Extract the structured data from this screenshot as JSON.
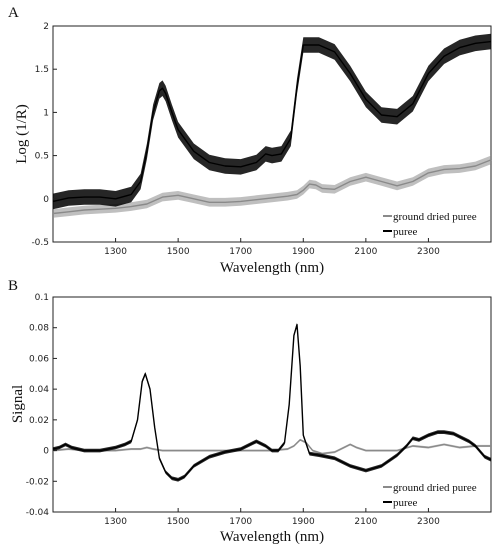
{
  "chart_data": [
    {
      "type": "line",
      "panel_label": "A",
      "xlabel": "Wavelength (nm)",
      "ylabel": "Log (1/R)",
      "xlim": [
        1100,
        2500
      ],
      "ylim": [
        -0.5,
        2
      ],
      "xticks": [
        1300,
        1500,
        1700,
        1900,
        2100,
        2300
      ],
      "yticks": [
        -0.5,
        0,
        0.5,
        1,
        1.5,
        2
      ],
      "ytick_labels": [
        "-0.5",
        "0",
        "0.5",
        "1",
        "1.5",
        "2"
      ],
      "legend_position": "bottom-right",
      "grid": false,
      "series": [
        {
          "name": "ground dried puree",
          "color": "#8a8a8a",
          "band_halfwidth": 0.05,
          "x": [
            1100,
            1150,
            1200,
            1250,
            1300,
            1350,
            1400,
            1450,
            1500,
            1550,
            1600,
            1650,
            1700,
            1750,
            1800,
            1850,
            1880,
            1900,
            1920,
            1940,
            1960,
            2000,
            2050,
            2100,
            2150,
            2200,
            2250,
            2300,
            2350,
            2400,
            2450,
            2500
          ],
          "values": [
            -0.17,
            -0.15,
            -0.13,
            -0.12,
            -0.11,
            -0.09,
            -0.06,
            0.02,
            0.04,
            0.0,
            -0.04,
            -0.04,
            -0.03,
            -0.01,
            0.01,
            0.03,
            0.05,
            0.1,
            0.17,
            0.16,
            0.12,
            0.11,
            0.2,
            0.25,
            0.2,
            0.15,
            0.2,
            0.3,
            0.34,
            0.35,
            0.38,
            0.45
          ]
        },
        {
          "name": "puree",
          "color": "#000000",
          "band_halfwidth": 0.09,
          "x": [
            1100,
            1150,
            1200,
            1250,
            1300,
            1350,
            1380,
            1400,
            1420,
            1440,
            1450,
            1460,
            1480,
            1500,
            1550,
            1600,
            1650,
            1700,
            1750,
            1780,
            1800,
            1830,
            1860,
            1880,
            1900,
            1950,
            2000,
            2050,
            2100,
            2150,
            2200,
            2250,
            2300,
            2350,
            2400,
            2450,
            2500
          ],
          "values": [
            -0.03,
            0.01,
            0.02,
            0.02,
            0.0,
            0.05,
            0.2,
            0.55,
            1.0,
            1.25,
            1.28,
            1.22,
            1.0,
            0.8,
            0.55,
            0.42,
            0.38,
            0.37,
            0.42,
            0.52,
            0.5,
            0.52,
            0.7,
            1.3,
            1.78,
            1.78,
            1.7,
            1.45,
            1.15,
            0.97,
            0.95,
            1.1,
            1.45,
            1.65,
            1.75,
            1.8,
            1.82
          ]
        }
      ]
    },
    {
      "type": "line",
      "panel_label": "B",
      "xlabel": "Wavelength (nm)",
      "ylabel": "Signal",
      "xlim": [
        1100,
        2500
      ],
      "ylim": [
        -0.04,
        0.1
      ],
      "xticks": [
        1300,
        1500,
        1700,
        1900,
        2100,
        2300
      ],
      "yticks": [
        -0.04,
        -0.02,
        0,
        0.02,
        0.04,
        0.06,
        0.08,
        0.1
      ],
      "ytick_labels": [
        "-0.04",
        "-0.02",
        "0",
        "0.02",
        "0.04",
        "0.06",
        "0.08",
        "0.1"
      ],
      "legend_position": "bottom-right",
      "grid": false,
      "series": [
        {
          "name": "ground dried puree",
          "color": "#8a8a8a",
          "band_halfwidth": 0.0007,
          "x": [
            1100,
            1150,
            1200,
            1300,
            1350,
            1380,
            1400,
            1420,
            1450,
            1480,
            1500,
            1600,
            1700,
            1750,
            1800,
            1850,
            1870,
            1890,
            1910,
            1930,
            1960,
            2000,
            2030,
            2050,
            2070,
            2100,
            2150,
            2200,
            2250,
            2300,
            2350,
            2400,
            2450,
            2500
          ],
          "values": [
            0.0,
            0.001,
            0.0,
            0.0,
            0.001,
            0.001,
            0.002,
            0.001,
            0.0,
            0.0,
            0.0,
            0.0,
            0.0,
            0.0,
            0.0,
            0.001,
            0.003,
            0.007,
            0.005,
            0.0,
            -0.002,
            -0.001,
            0.002,
            0.004,
            0.002,
            0.0,
            0.0,
            0.0,
            0.003,
            0.002,
            0.004,
            0.002,
            0.003,
            0.003
          ]
        },
        {
          "name": "puree",
          "color": "#000000",
          "band_halfwidth": 0.0012,
          "x": [
            1100,
            1120,
            1140,
            1160,
            1200,
            1250,
            1300,
            1330,
            1350,
            1370,
            1385,
            1395,
            1410,
            1425,
            1440,
            1460,
            1480,
            1500,
            1520,
            1550,
            1600,
            1650,
            1700,
            1750,
            1780,
            1800,
            1820,
            1840,
            1855,
            1870,
            1880,
            1890,
            1900,
            1920,
            1950,
            2000,
            2050,
            2100,
            2150,
            2200,
            2230,
            2250,
            2270,
            2300,
            2330,
            2350,
            2380,
            2400,
            2430,
            2450,
            2480,
            2500
          ],
          "values": [
            0.001,
            0.002,
            0.004,
            0.002,
            0.0,
            0.0,
            0.002,
            0.004,
            0.006,
            0.02,
            0.045,
            0.05,
            0.04,
            0.015,
            -0.005,
            -0.014,
            -0.018,
            -0.019,
            -0.017,
            -0.01,
            -0.004,
            -0.001,
            0.001,
            0.006,
            0.003,
            0.0,
            0.0,
            0.005,
            0.03,
            0.075,
            0.082,
            0.055,
            0.01,
            -0.002,
            -0.003,
            -0.005,
            -0.01,
            -0.013,
            -0.01,
            -0.003,
            0.003,
            0.008,
            0.007,
            0.01,
            0.012,
            0.012,
            0.011,
            0.009,
            0.006,
            0.003,
            -0.004,
            -0.006
          ]
        }
      ]
    }
  ]
}
